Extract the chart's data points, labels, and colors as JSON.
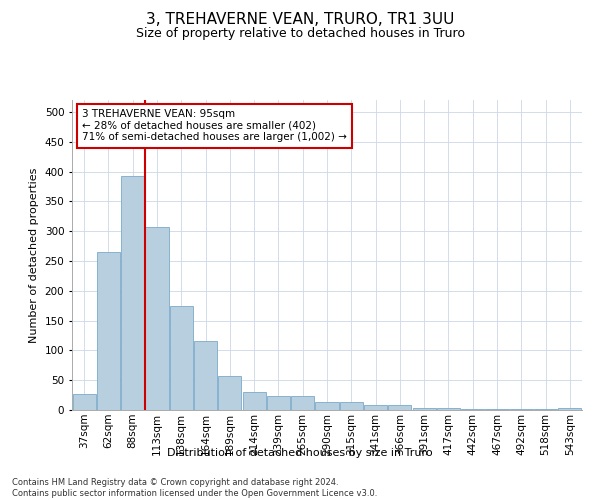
{
  "title": "3, TREHAVERNE VEAN, TRURO, TR1 3UU",
  "subtitle": "Size of property relative to detached houses in Truro",
  "xlabel": "Distribution of detached houses by size in Truro",
  "ylabel": "Number of detached properties",
  "categories": [
    "37sqm",
    "62sqm",
    "88sqm",
    "113sqm",
    "138sqm",
    "164sqm",
    "189sqm",
    "214sqm",
    "239sqm",
    "265sqm",
    "290sqm",
    "315sqm",
    "341sqm",
    "366sqm",
    "391sqm",
    "417sqm",
    "442sqm",
    "467sqm",
    "492sqm",
    "518sqm",
    "543sqm"
  ],
  "values": [
    27,
    265,
    393,
    307,
    175,
    115,
    57,
    30,
    23,
    23,
    13,
    13,
    8,
    8,
    4,
    4,
    2,
    1,
    1,
    1,
    3
  ],
  "bar_color": "#b8cfe0",
  "bar_edge_color": "#7aaac8",
  "vline_x": 2.5,
  "vline_color": "#cc0000",
  "annotation_text": "3 TREHAVERNE VEAN: 95sqm\n← 28% of detached houses are smaller (402)\n71% of semi-detached houses are larger (1,002) →",
  "annotation_box_color": "#ffffff",
  "annotation_box_edge": "#cc0000",
  "ylim": [
    0,
    520
  ],
  "yticks": [
    0,
    50,
    100,
    150,
    200,
    250,
    300,
    350,
    400,
    450,
    500
  ],
  "footer": "Contains HM Land Registry data © Crown copyright and database right 2024.\nContains public sector information licensed under the Open Government Licence v3.0.",
  "background_color": "#ffffff",
  "grid_color": "#ccd8e8",
  "title_fontsize": 11,
  "subtitle_fontsize": 9,
  "axis_label_fontsize": 8,
  "tick_fontsize": 7.5,
  "annot_fontsize": 7.5
}
